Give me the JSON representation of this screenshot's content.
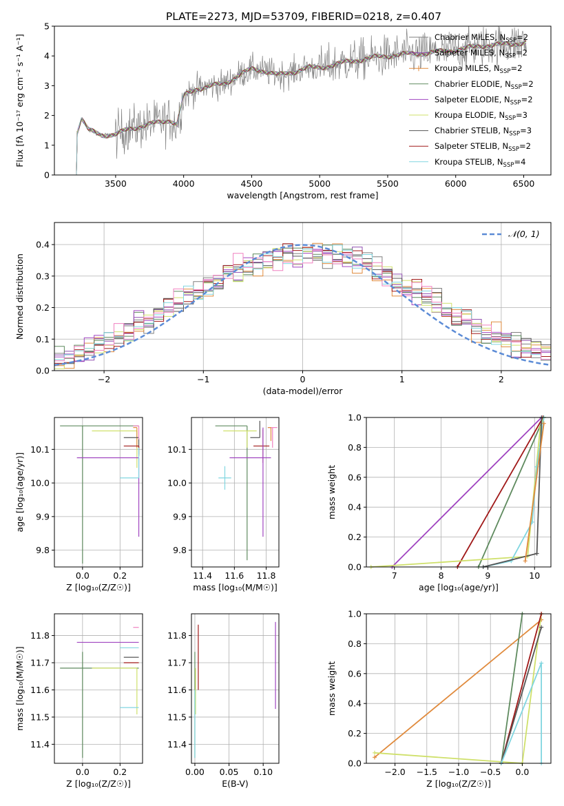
{
  "figure_title": "PLATE=2273, MJD=53709, FIBERID=0218, z=0.407",
  "colors": {
    "chabrier_miles": "#7f7f7f",
    "salpeter_miles": "#8f4fb0",
    "kroupa_miles": "#e08a3c",
    "chabrier_elodie": "#5e8a5e",
    "salpeter_elodie": "#a044c0",
    "kroupa_elodie": "#cfe06a",
    "chabrier_stelib": "#555555",
    "salpeter_stelib": "#a01818",
    "kroupa_stelib": "#80d6e0",
    "pink": "#f080c0",
    "gaussian": "#5b8bd6"
  },
  "chart_data": [
    {
      "id": "spectrum",
      "type": "line",
      "title": "PLATE=2273, MJD=53709, FIBERID=0218, z=0.407",
      "xlabel": "wavelength [Angstrom, rest frame]",
      "ylabel": "Flux [fλ 10⁻¹⁷ erg cm⁻² s⁻¹ A⁻¹]",
      "xlim": [
        3050,
        6700
      ],
      "ylim": [
        0,
        5
      ],
      "xticks": [
        "3500",
        "4000",
        "4500",
        "5000",
        "5500",
        "6000",
        "6500"
      ],
      "yticks": [
        "0",
        "1",
        "2",
        "3",
        "4",
        "5"
      ],
      "legend": "top-right",
      "continuum": {
        "x": [
          3200,
          3250,
          3300,
          3400,
          3500,
          3600,
          3700,
          3800,
          3900,
          3950,
          4000,
          4100,
          4200,
          4300,
          4400,
          4500,
          4600,
          4700,
          4800,
          4900,
          5000,
          5200,
          5400,
          5600,
          5800,
          6000,
          6200,
          6400,
          6520
        ],
        "y": [
          1.2,
          1.9,
          1.5,
          1.35,
          1.35,
          1.55,
          1.65,
          1.75,
          1.85,
          1.7,
          2.65,
          2.9,
          3.0,
          3.05,
          3.35,
          3.55,
          3.5,
          3.35,
          3.45,
          3.6,
          3.6,
          3.8,
          3.95,
          4.05,
          4.1,
          4.2,
          4.35,
          4.4,
          4.45
        ]
      },
      "series": [
        {
          "name": "Chabrier MILES, N",
          "sub": "SSP",
          "suffix": "=2",
          "color": "#7f7f7f"
        },
        {
          "name": "Salpeter MILES, N",
          "sub": "SSP",
          "suffix": "=2",
          "color": "#8f4fb0"
        },
        {
          "name": "Kroupa MILES, N",
          "sub": "SSP",
          "suffix": "=2",
          "color": "#e08a3c"
        },
        {
          "name": "Chabrier ELODIE, N",
          "sub": "SSP",
          "suffix": "=2",
          "color": "#5e8a5e"
        },
        {
          "name": "Salpeter ELODIE, N",
          "sub": "SSP",
          "suffix": "=2",
          "color": "#a044c0"
        },
        {
          "name": "Kroupa ELODIE, N",
          "sub": "SSP",
          "suffix": "=3",
          "color": "#cfe06a"
        },
        {
          "name": "Chabrier STELIB, N",
          "sub": "SSP",
          "suffix": "=3",
          "color": "#555555"
        },
        {
          "name": "Salpeter STELIB, N",
          "sub": "SSP",
          "suffix": "=2",
          "color": "#a01818"
        },
        {
          "name": "Kroupa STELIB, N",
          "sub": "SSP",
          "suffix": "=4",
          "color": "#80d6e0"
        }
      ]
    },
    {
      "id": "residuals",
      "type": "line",
      "xlabel": "(data-model)/error",
      "ylabel": "Normed distribution",
      "xlim": [
        -2.5,
        2.5
      ],
      "ylim": [
        0,
        0.47
      ],
      "xticks": [
        "−2",
        "−1",
        "0",
        "1",
        "2"
      ],
      "yticks": [
        "0.0",
        "0.1",
        "0.2",
        "0.3",
        "0.4"
      ],
      "legend": "top-right",
      "gaussian_label": "𝒩(0, 1)",
      "bin_width": 0.1,
      "hist_colors": [
        "#7f7f7f",
        "#8f4fb0",
        "#e08a3c",
        "#5e8a5e",
        "#a044c0",
        "#cfe06a",
        "#555555",
        "#a01818",
        "#80d6e0",
        "#f080c0"
      ]
    },
    {
      "id": "age_vs_Z",
      "type": "scatter",
      "xlabel": "Z [log₁₀(Z/Z☉)]",
      "ylabel": "age  [log₁₀(age/yr)]",
      "xlim": [
        -0.15,
        0.32
      ],
      "ylim": [
        9.75,
        10.195
      ],
      "xticks": [
        "0.0",
        "0.2"
      ],
      "yticks": [
        "9.8",
        "9.9",
        "10.0",
        "10.1"
      ],
      "points": [
        {
          "x": 0.3,
          "y": 10.17,
          "xerr": [
            0.42,
            0.0
          ],
          "yerr": [
            0.0,
            0.0
          ],
          "color": "#5e8a5e"
        },
        {
          "x": 0.0,
          "y": 10.17,
          "xerr": [
            0.0,
            0.0
          ],
          "yerr": [
            0.41,
            0.0
          ],
          "color": "#5e8a5e"
        },
        {
          "x": 0.29,
          "y": 10.155,
          "xerr": [
            0.24,
            0.0
          ],
          "yerr": [
            0.11,
            0.0
          ],
          "color": "#cfe06a"
        },
        {
          "x": 0.29,
          "y": 10.165,
          "xerr": [
            0.02,
            0.0
          ],
          "yerr": [
            0.06,
            0.0
          ],
          "color": "#e08a3c"
        },
        {
          "x": 0.3,
          "y": 10.135,
          "xerr": [
            0.08,
            0.0
          ],
          "yerr": [
            0.05,
            0.0
          ],
          "color": "#555555"
        },
        {
          "x": 0.3,
          "y": 10.11,
          "xerr": [
            0.08,
            0.0
          ],
          "yerr": [
            0.03,
            0.0
          ],
          "color": "#a01818"
        },
        {
          "x": 0.3,
          "y": 10.075,
          "xerr": [
            0.33,
            0.0
          ],
          "yerr": [
            0.235,
            0.0
          ],
          "color": "#a044c0"
        },
        {
          "x": 0.3,
          "y": 10.015,
          "xerr": [
            0.1,
            0.0
          ],
          "yerr": [
            0.0,
            0.09
          ],
          "color": "#80d6e0"
        },
        {
          "x": 0.3,
          "y": 10.17,
          "xerr": [
            0.03,
            0.0
          ],
          "yerr": [
            0.04,
            0.0
          ],
          "color": "#f080c0"
        }
      ]
    },
    {
      "id": "age_vs_mass",
      "type": "scatter",
      "xlabel": "mass [log₁₀(M/M☉)]",
      "ylabel": "",
      "xlim": [
        11.33,
        11.88
      ],
      "ylim": [
        9.75,
        10.195
      ],
      "xticks": [
        "11.4",
        "11.6",
        "11.8"
      ],
      "yticks": [
        "9.8",
        "9.9",
        "10.0",
        "10.1"
      ],
      "points": [
        {
          "x": 11.68,
          "y": 10.17,
          "xerr": [
            0.2,
            0.0
          ],
          "yerr": [
            0.4,
            0.0
          ],
          "color": "#5e8a5e"
        },
        {
          "x": 11.68,
          "y": 10.155,
          "xerr": [
            0.15,
            0.06
          ],
          "yerr": [
            0.05,
            0.0
          ],
          "color": "#cfe06a"
        },
        {
          "x": 11.76,
          "y": 10.135,
          "xerr": [
            0.06,
            0.0
          ],
          "yerr": [
            0.0,
            0.05
          ],
          "color": "#555555"
        },
        {
          "x": 11.78,
          "y": 10.11,
          "xerr": [
            0.06,
            0.04
          ],
          "yerr": [
            0.05,
            0.05
          ],
          "color": "#a01818"
        },
        {
          "x": 11.78,
          "y": 10.075,
          "xerr": [
            0.21,
            0.05
          ],
          "yerr": [
            0.235,
            0.09
          ],
          "color": "#a044c0"
        },
        {
          "x": 11.54,
          "y": 10.015,
          "xerr": [
            0.04,
            0.04
          ],
          "yerr": [
            0.035,
            0.035
          ],
          "color": "#80d6e0"
        },
        {
          "x": 11.84,
          "y": 10.165,
          "xerr": [
            0.03,
            0.03
          ],
          "yerr": [
            0.06,
            0.0
          ],
          "color": "#f080c0"
        },
        {
          "x": 11.83,
          "y": 10.165,
          "xerr": [
            0.02,
            0.0
          ],
          "yerr": [
            0.04,
            0.0
          ],
          "color": "#e08a3c"
        }
      ]
    },
    {
      "id": "weight_vs_age",
      "type": "line",
      "xlabel": "age  [log₁₀(age/yr)]",
      "ylabel": "mass weight",
      "xlim": [
        6.4,
        10.35
      ],
      "ylim": [
        0,
        1
      ],
      "xticks": [
        "7",
        "8",
        "9",
        "10"
      ],
      "yticks": [
        "0.0",
        "0.2",
        "0.4",
        "0.6",
        "0.8",
        "1.0"
      ],
      "series": [
        {
          "color": "#a044c0",
          "x": [
            6.95,
            10.15
          ],
          "y": [
            0.0,
            1.0
          ]
        },
        {
          "color": "#a01818",
          "x": [
            8.35,
            10.18
          ],
          "y": [
            0.0,
            1.0
          ]
        },
        {
          "color": "#5e8a5e",
          "x": [
            8.8,
            10.2
          ],
          "y": [
            0.0,
            1.0
          ]
        },
        {
          "color": "#cfe06a",
          "x": [
            6.5,
            9.85,
            10.12,
            10.2
          ],
          "y": [
            0.0,
            0.07,
            0.93,
            1.0
          ]
        },
        {
          "color": "#80d6e0",
          "x": [
            8.9,
            9.5,
            9.95,
            10.05,
            10.2
          ],
          "y": [
            0.0,
            0.04,
            0.3,
            0.67,
            1.0
          ]
        },
        {
          "color": "#555555",
          "x": [
            8.9,
            10.05,
            10.15
          ],
          "y": [
            0.0,
            0.09,
            1.0
          ]
        },
        {
          "color": "#e08a3c",
          "x": [
            9.8,
            10.2
          ],
          "y": [
            0.04,
            0.96
          ]
        }
      ]
    },
    {
      "id": "mass_vs_Z",
      "type": "scatter",
      "xlabel": "Z [log₁₀(Z/Z☉)]",
      "ylabel": "mass [log₁₀(M/M☉)]",
      "xlim": [
        -0.15,
        0.32
      ],
      "ylim": [
        11.33,
        11.88
      ],
      "xticks": [
        "0.0",
        "0.2"
      ],
      "yticks": [
        "11.4",
        "11.5",
        "11.6",
        "11.7",
        "11.8"
      ],
      "points": [
        {
          "x": 0.3,
          "y": 11.68,
          "xerr": [
            0.42,
            0.0
          ],
          "yerr": [
            0.0,
            0.0
          ],
          "color": "#5e8a5e"
        },
        {
          "x": 0.0,
          "y": 11.68,
          "xerr": [
            0.0,
            0.0
          ],
          "yerr": [
            0.33,
            0.06
          ],
          "color": "#5e8a5e"
        },
        {
          "x": 0.29,
          "y": 11.68,
          "xerr": [
            0.24,
            0.0
          ],
          "yerr": [
            0.17,
            0.0
          ],
          "color": "#cfe06a"
        },
        {
          "x": 0.3,
          "y": 11.775,
          "xerr": [
            0.33,
            0.0
          ],
          "yerr": [
            0.0,
            0.0
          ],
          "color": "#a044c0"
        },
        {
          "x": 0.3,
          "y": 11.755,
          "xerr": [
            0.1,
            0.0
          ],
          "yerr": [
            0.0,
            0.0
          ],
          "color": "#80d6e0"
        },
        {
          "x": 0.3,
          "y": 11.72,
          "xerr": [
            0.08,
            0.0
          ],
          "yerr": [
            0.0,
            0.0
          ],
          "color": "#555555"
        },
        {
          "x": 0.3,
          "y": 11.7,
          "xerr": [
            0.08,
            0.0
          ],
          "yerr": [
            0.0,
            0.0
          ],
          "color": "#a01818"
        },
        {
          "x": 0.3,
          "y": 11.535,
          "xerr": [
            0.1,
            0.0
          ],
          "yerr": [
            0.0,
            0.0
          ],
          "color": "#80d6e0"
        },
        {
          "x": 0.3,
          "y": 11.83,
          "xerr": [
            0.03,
            0.0
          ],
          "yerr": [
            0.0,
            0.0
          ],
          "color": "#f080c0"
        }
      ]
    },
    {
      "id": "mass_vs_ebv",
      "type": "scatter",
      "xlabel": "E(B-V)",
      "ylabel": "",
      "xlim": [
        -0.005,
        0.123
      ],
      "ylim": [
        11.33,
        11.88
      ],
      "xticks": [
        "0.00",
        "0.05",
        "0.10"
      ],
      "yticks": [
        "11.4",
        "11.5",
        "11.6",
        "11.7",
        "11.8"
      ],
      "points": [
        {
          "x": 0.0,
          "y": 11.68,
          "xerr": [
            0.0,
            0.0
          ],
          "yerr": [
            0.33,
            0.06
          ],
          "color": "#5e8a5e"
        },
        {
          "x": 0.001,
          "y": 11.68,
          "xerr": [
            0.0,
            0.0
          ],
          "yerr": [
            0.17,
            0.0
          ],
          "color": "#cfe06a"
        },
        {
          "x": 0.005,
          "y": 11.72,
          "xerr": [
            0.0,
            0.0
          ],
          "yerr": [
            0.12,
            0.12
          ],
          "color": "#a01818"
        },
        {
          "x": 0.0,
          "y": 11.6,
          "xerr": [
            0.0,
            0.0
          ],
          "yerr": [
            0.25,
            0.0
          ],
          "color": "#80d6e0"
        },
        {
          "x": 0.118,
          "y": 11.69,
          "xerr": [
            0.0,
            0.0
          ],
          "yerr": [
            0.16,
            0.16
          ],
          "color": "#a044c0"
        }
      ]
    },
    {
      "id": "weight_vs_Z",
      "type": "line",
      "xlabel": "Z [log₁₀(Z/Z☉)]",
      "ylabel": "mass weight",
      "xlim": [
        -2.45,
        0.45
      ],
      "ylim": [
        0,
        1
      ],
      "xticks": [
        "−2.0",
        "−1.5",
        "−1.0",
        "−0.5",
        "0.0"
      ],
      "yticks": [
        "0.0",
        "0.2",
        "0.4",
        "0.6",
        "0.8",
        "1.0"
      ],
      "series": [
        {
          "color": "#e08a3c",
          "x": [
            -2.32,
            0.3
          ],
          "y": [
            0.04,
            0.96
          ]
        },
        {
          "color": "#cfe06a",
          "x": [
            -2.32,
            0.0,
            0.3
          ],
          "y": [
            0.07,
            0.0,
            1.0
          ]
        },
        {
          "color": "#5e8a5e",
          "x": [
            -0.33,
            0.0
          ],
          "y": [
            0.0,
            1.0
          ]
        },
        {
          "color": "#a01818",
          "x": [
            -0.33,
            0.3
          ],
          "y": [
            0.0,
            1.0
          ]
        },
        {
          "color": "#555555",
          "x": [
            -0.33,
            0.3
          ],
          "y": [
            0.0,
            0.91
          ]
        },
        {
          "color": "#80d6e0",
          "x": [
            -0.33,
            0.3,
            0.3
          ],
          "y": [
            0.0,
            0.67,
            0.0
          ]
        }
      ]
    }
  ]
}
